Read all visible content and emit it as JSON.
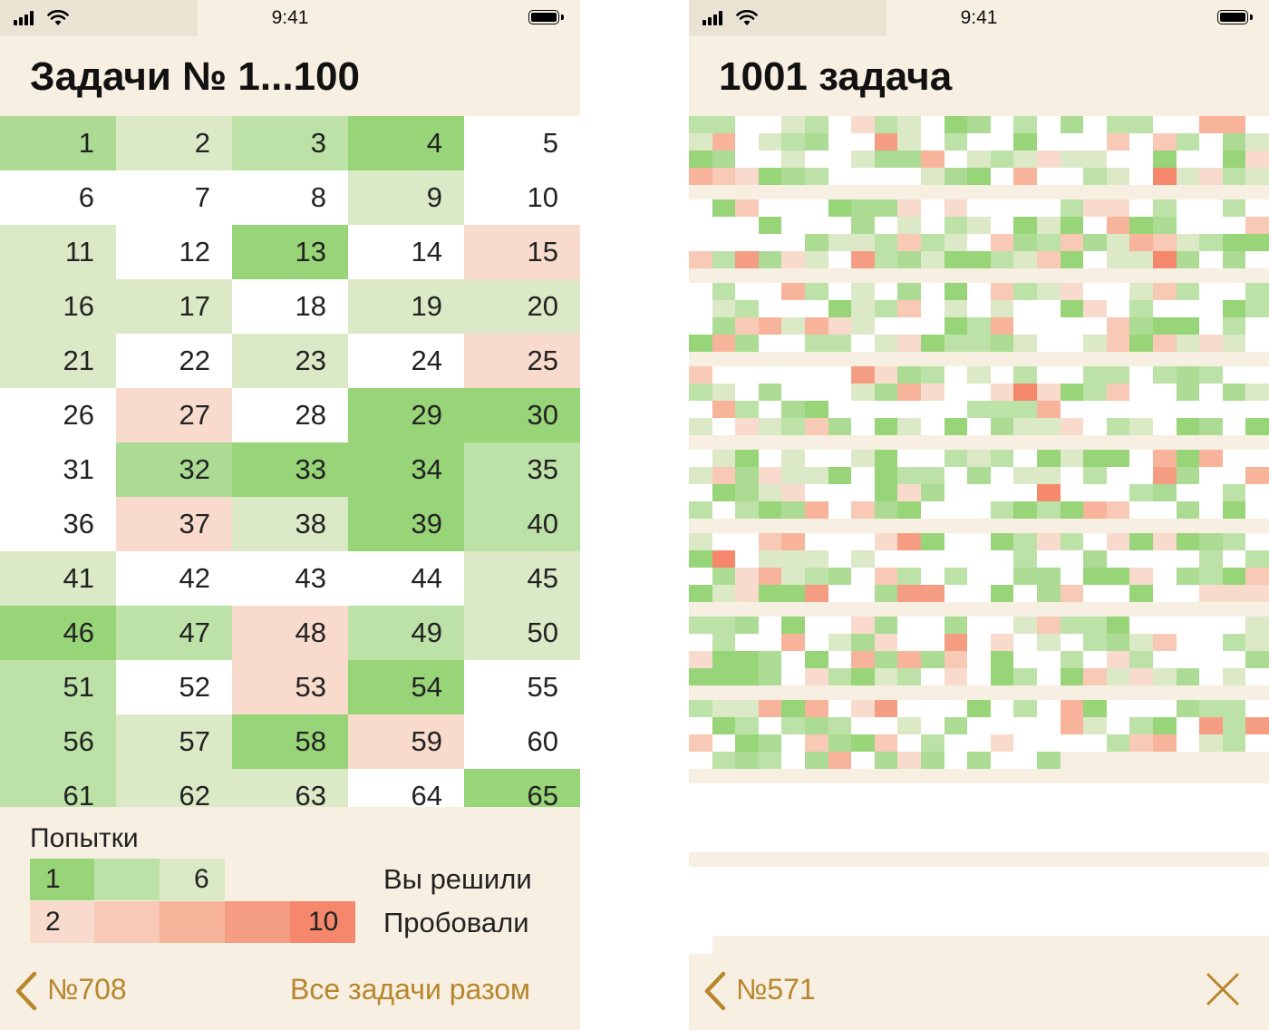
{
  "status": {
    "time": "9:41"
  },
  "left_screen": {
    "title": "Задачи № 1...100",
    "tasks": [
      {
        "n": "1",
        "tone": "g3"
      },
      {
        "n": "2",
        "tone": "g1"
      },
      {
        "n": "3",
        "tone": "g2"
      },
      {
        "n": "4",
        "tone": "g4"
      },
      {
        "n": "5",
        "tone": "w"
      },
      {
        "n": "6",
        "tone": "w"
      },
      {
        "n": "7",
        "tone": "w"
      },
      {
        "n": "8",
        "tone": "w"
      },
      {
        "n": "9",
        "tone": "g1"
      },
      {
        "n": "10",
        "tone": "w"
      },
      {
        "n": "11",
        "tone": "g1"
      },
      {
        "n": "12",
        "tone": "w"
      },
      {
        "n": "13",
        "tone": "g4"
      },
      {
        "n": "14",
        "tone": "w"
      },
      {
        "n": "15",
        "tone": "r1"
      },
      {
        "n": "16",
        "tone": "g1"
      },
      {
        "n": "17",
        "tone": "g1"
      },
      {
        "n": "18",
        "tone": "w"
      },
      {
        "n": "19",
        "tone": "g1"
      },
      {
        "n": "20",
        "tone": "g1"
      },
      {
        "n": "21",
        "tone": "g1"
      },
      {
        "n": "22",
        "tone": "w"
      },
      {
        "n": "23",
        "tone": "g1"
      },
      {
        "n": "24",
        "tone": "w"
      },
      {
        "n": "25",
        "tone": "r1"
      },
      {
        "n": "26",
        "tone": "w"
      },
      {
        "n": "27",
        "tone": "r1"
      },
      {
        "n": "28",
        "tone": "w"
      },
      {
        "n": "29",
        "tone": "g4"
      },
      {
        "n": "30",
        "tone": "g4"
      },
      {
        "n": "31",
        "tone": "w"
      },
      {
        "n": "32",
        "tone": "g3"
      },
      {
        "n": "33",
        "tone": "g4"
      },
      {
        "n": "34",
        "tone": "g4"
      },
      {
        "n": "35",
        "tone": "g2"
      },
      {
        "n": "36",
        "tone": "w"
      },
      {
        "n": "37",
        "tone": "r1"
      },
      {
        "n": "38",
        "tone": "g1"
      },
      {
        "n": "39",
        "tone": "g4"
      },
      {
        "n": "40",
        "tone": "g2"
      },
      {
        "n": "41",
        "tone": "g1"
      },
      {
        "n": "42",
        "tone": "w"
      },
      {
        "n": "43",
        "tone": "w"
      },
      {
        "n": "44",
        "tone": "w"
      },
      {
        "n": "45",
        "tone": "g1"
      },
      {
        "n": "46",
        "tone": "g4"
      },
      {
        "n": "47",
        "tone": "g2"
      },
      {
        "n": "48",
        "tone": "r1"
      },
      {
        "n": "49",
        "tone": "g2"
      },
      {
        "n": "50",
        "tone": "g1"
      },
      {
        "n": "51",
        "tone": "g2"
      },
      {
        "n": "52",
        "tone": "w"
      },
      {
        "n": "53",
        "tone": "r1"
      },
      {
        "n": "54",
        "tone": "g4"
      },
      {
        "n": "55",
        "tone": "w"
      },
      {
        "n": "56",
        "tone": "g2"
      },
      {
        "n": "57",
        "tone": "g1"
      },
      {
        "n": "58",
        "tone": "g4"
      },
      {
        "n": "59",
        "tone": "r1"
      },
      {
        "n": "60",
        "tone": "w"
      },
      {
        "n": "61",
        "tone": "g2"
      },
      {
        "n": "62",
        "tone": "g1"
      },
      {
        "n": "63",
        "tone": "g1"
      },
      {
        "n": "64",
        "tone": "w"
      },
      {
        "n": "65",
        "tone": "g4"
      }
    ],
    "legend": {
      "title": "Попытки",
      "solved": {
        "from": "1",
        "to": "6",
        "label": "Вы решили"
      },
      "tried": {
        "from": "2",
        "to": "10",
        "label": "Пробовали"
      }
    },
    "nav": {
      "back": "№708",
      "all_tasks": "Все задачи разом"
    }
  },
  "right_screen": {
    "title": "1001 задача",
    "nav": {
      "back": "№571"
    }
  },
  "tones": {
    "w": "#ffffff",
    "g1": "#dbe9c6",
    "g2": "#bde2a8",
    "g3": "#acdb94",
    "g4": "#98d478",
    "r1": "#f8dbcc",
    "r2": "#f8c9b4",
    "r3": "#f7b49b",
    "r4": "#f59d82",
    "r5": "#f5876c"
  }
}
